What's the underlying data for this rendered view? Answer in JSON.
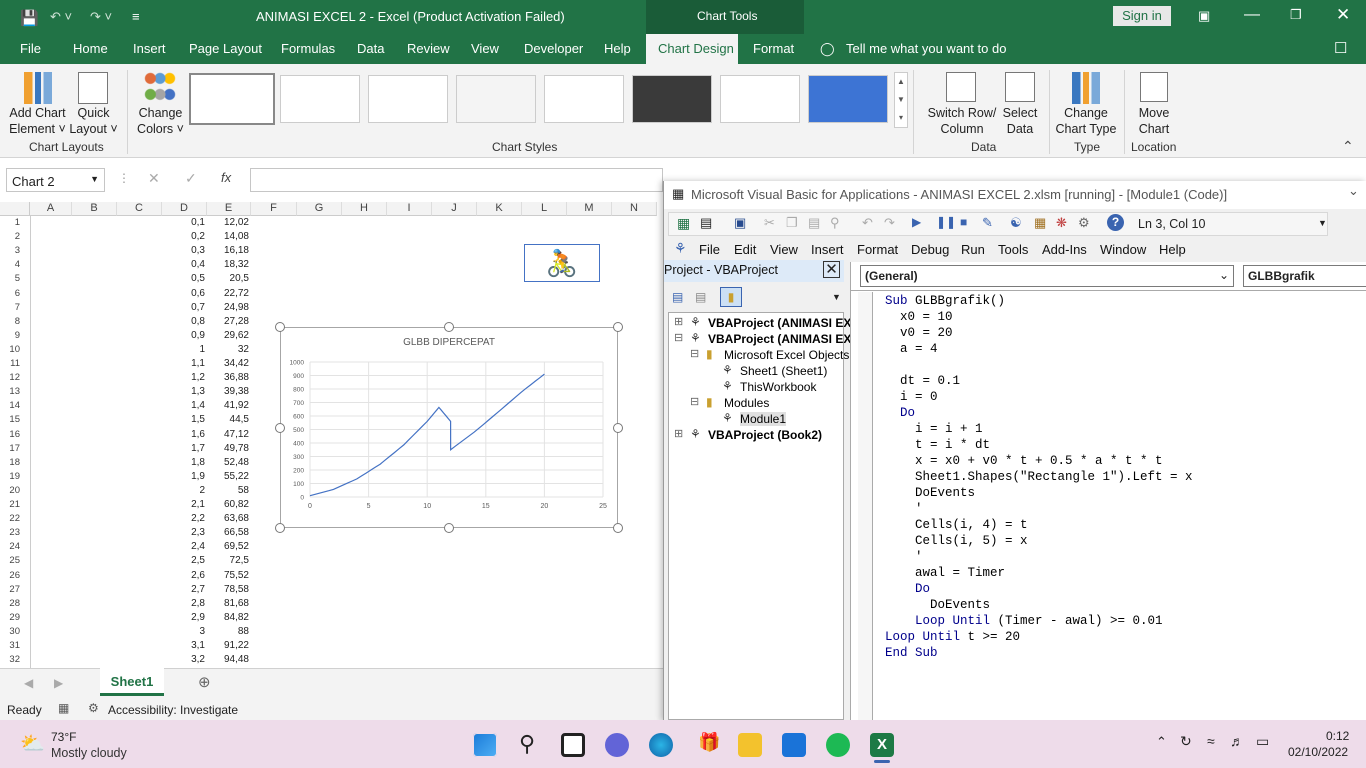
{
  "window": {
    "title": "ANIMASI EXCEL 2  -  Excel (Product Activation Failed)",
    "chart_tools": "Chart Tools",
    "sign_in": "Sign in"
  },
  "menu": [
    "File",
    "Home",
    "Insert",
    "Page Layout",
    "Formulas",
    "Data",
    "Review",
    "View",
    "Developer",
    "Help",
    "Chart Design",
    "Format",
    "Tell me what you want to do"
  ],
  "ribbon": {
    "add_chart_element": [
      "Add Chart",
      "Element ˅"
    ],
    "quick_layout": [
      "Quick",
      "Layout ˅"
    ],
    "change_colors": [
      "Change",
      "Colors ˅"
    ],
    "switch": [
      "Switch Row/",
      "Column"
    ],
    "select_data": [
      "Select",
      "Data"
    ],
    "change_type": [
      "Change",
      "Chart Type"
    ],
    "move_chart": [
      "Move",
      "Chart"
    ],
    "groups": {
      "layouts": "Chart Layouts",
      "styles": "Chart Styles",
      "data": "Data",
      "type": "Type",
      "location": "Location"
    },
    "accent": "#217346"
  },
  "namebox": "Chart 2",
  "fx": "fx",
  "columns": [
    "A",
    "B",
    "C",
    "D",
    "E",
    "F",
    "G",
    "H",
    "I",
    "J",
    "K",
    "L",
    "M",
    "N"
  ],
  "rows": [
    [
      "1",
      "0,1",
      "12,02"
    ],
    [
      "2",
      "0,2",
      "14,08"
    ],
    [
      "3",
      "0,3",
      "16,18"
    ],
    [
      "4",
      "0,4",
      "18,32"
    ],
    [
      "5",
      "0,5",
      "20,5"
    ],
    [
      "6",
      "0,6",
      "22,72"
    ],
    [
      "7",
      "0,7",
      "24,98"
    ],
    [
      "8",
      "0,8",
      "27,28"
    ],
    [
      "9",
      "0,9",
      "29,62"
    ],
    [
      "10",
      "1",
      "32"
    ],
    [
      "11",
      "1,1",
      "34,42"
    ],
    [
      "12",
      "1,2",
      "36,88"
    ],
    [
      "13",
      "1,3",
      "39,38"
    ],
    [
      "14",
      "1,4",
      "41,92"
    ],
    [
      "15",
      "1,5",
      "44,5"
    ],
    [
      "16",
      "1,6",
      "47,12"
    ],
    [
      "17",
      "1,7",
      "49,78"
    ],
    [
      "18",
      "1,8",
      "52,48"
    ],
    [
      "19",
      "1,9",
      "55,22"
    ],
    [
      "20",
      "2",
      "58"
    ],
    [
      "21",
      "2,1",
      "60,82"
    ],
    [
      "22",
      "2,2",
      "63,68"
    ],
    [
      "23",
      "2,3",
      "66,58"
    ],
    [
      "24",
      "2,4",
      "69,52"
    ],
    [
      "25",
      "2,5",
      "72,5"
    ],
    [
      "26",
      "2,6",
      "75,52"
    ],
    [
      "27",
      "2,7",
      "78,58"
    ],
    [
      "28",
      "2,8",
      "81,68"
    ],
    [
      "29",
      "2,9",
      "84,82"
    ],
    [
      "30",
      "3",
      "88"
    ],
    [
      "31",
      "3,1",
      "91,22"
    ],
    [
      "32",
      "3,2",
      "94,48"
    ]
  ],
  "chart_data": {
    "type": "line",
    "title": "GLBB DIPERCEPAT",
    "xlabel": "",
    "ylabel": "",
    "xlim": [
      0,
      25
    ],
    "ylim": [
      0,
      1000
    ],
    "xticks": [
      "0",
      "5",
      "10",
      "15",
      "20",
      "25"
    ],
    "yticks": [
      "0",
      "100",
      "200",
      "300",
      "400",
      "500",
      "600",
      "700",
      "800",
      "900",
      "1000"
    ],
    "grid": true,
    "series": [
      {
        "x": [
          0,
          2,
          4,
          6,
          8,
          10,
          11,
          12,
          12,
          14,
          16,
          18,
          20
        ],
        "y": [
          10,
          56,
          134,
          244,
          386,
          560,
          664,
          560,
          350,
          480,
          625,
          775,
          910
        ]
      }
    ]
  },
  "sheet_tab": "Sheet1",
  "status": {
    "ready": "Ready",
    "accessibility": "Accessibility: Investigate"
  },
  "vba": {
    "title": "Microsoft Visual Basic for Applications - ANIMASI EXCEL 2.xlsm [running] - [Module1 (Code)]",
    "lncol": "Ln 3, Col 10",
    "menu": [
      "File",
      "Edit",
      "View",
      "Insert",
      "Format",
      "Debug",
      "Run",
      "Tools",
      "Add-Ins",
      "Window",
      "Help"
    ],
    "project_title": "Project - VBAProject",
    "tree": [
      "VBAProject (ANIMASI EX",
      "VBAProject (ANIMASI EX",
      "Microsoft Excel Objects",
      "Sheet1 (Sheet1)",
      "ThisWorkbook",
      "Modules",
      "Module1",
      "VBAProject (Book2)"
    ],
    "general": "(General)",
    "proc": "GLBBgrafik",
    "code": [
      "Sub GLBBgrafik()",
      "  x0 = 10",
      "  v0 = 20",
      "  a = 4",
      "",
      "  dt = 0.1",
      "  i = 0",
      "  Do",
      "    i = i + 1",
      "    t = i * dt",
      "    x = x0 + v0 * t + 0.5 * a * t * t",
      "    Sheet1.Shapes(\"Rectangle 1\").Left = x",
      "    DoEvents",
      "    '",
      "    Cells(i, 4) = t",
      "    Cells(i, 5) = x",
      "    '",
      "    awal = Timer",
      "    Do",
      "      DoEvents",
      "    Loop Until (Timer - awal) >= 0.01",
      "Loop Until t >= 20",
      "End Sub"
    ]
  },
  "taskbar": {
    "temp": "73°F",
    "weather": "Mostly cloudy",
    "time": "0:12",
    "date": "02/10/2022"
  }
}
